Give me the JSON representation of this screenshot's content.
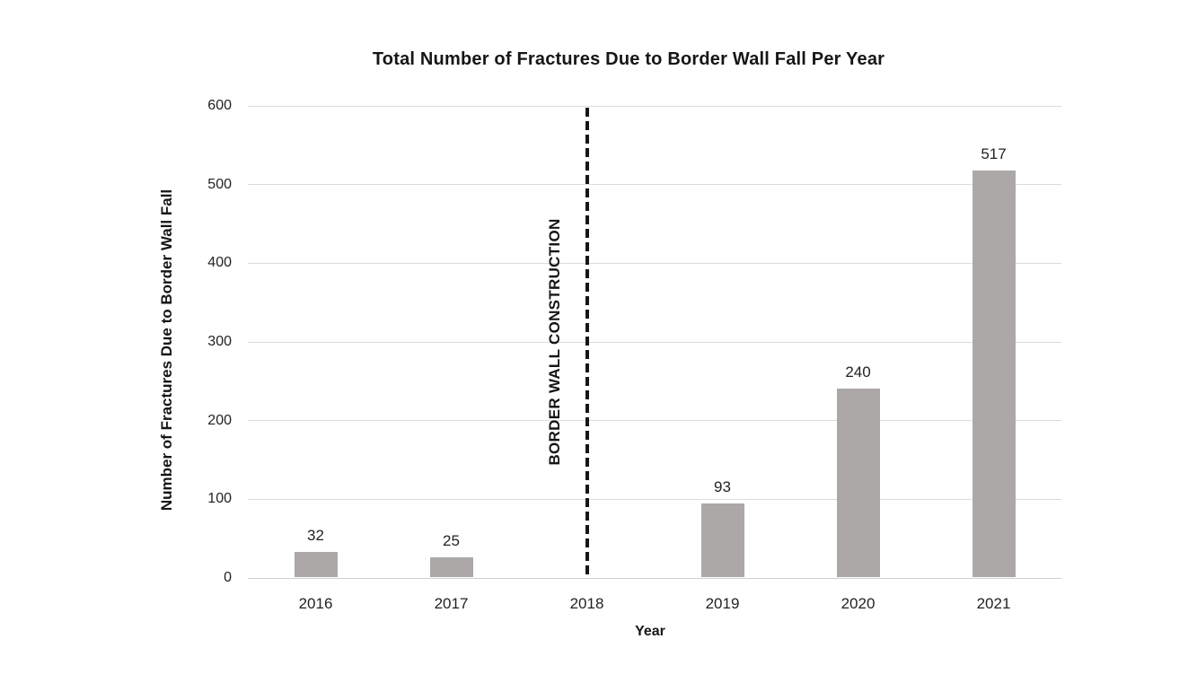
{
  "chart_data": {
    "type": "bar",
    "title": "Total Number of Fractures Due to Border Wall Fall Per Year",
    "xlabel": "Year",
    "ylabel": "Number of Fractures Due to Border Wall Fall",
    "categories": [
      "2016",
      "2017",
      "2018",
      "2019",
      "2020",
      "2021"
    ],
    "values": [
      32,
      25,
      null,
      93,
      240,
      517
    ],
    "ylim": [
      0,
      600
    ],
    "yticks": [
      0,
      100,
      200,
      300,
      400,
      500,
      600
    ],
    "grid": true,
    "legend": "none",
    "annotation": {
      "text": "BORDER WALL CONSTRUCTION",
      "at_category": "2018",
      "line_style": "dashed"
    },
    "colors": {
      "bar": "#ACA8A7",
      "gridline": "#DCDCDC",
      "axis_line": "#D2CFCE",
      "dashed_line": "#161616",
      "text": "#222222",
      "background": "#FFFFFF"
    }
  }
}
